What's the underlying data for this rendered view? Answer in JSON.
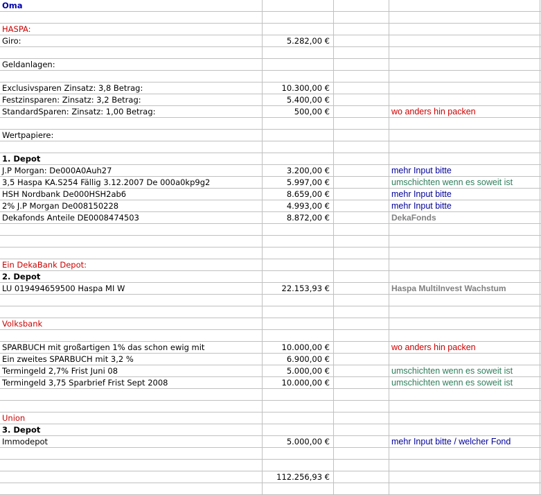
{
  "colors": {
    "title": "#0000aa",
    "section": "#cc0000",
    "note_red": "#cc0000",
    "note_blue": "#000099",
    "note_green": "#2e7d5b",
    "note_gray": "#808080"
  },
  "rows": [
    {
      "a": "Oma",
      "a_style": "title"
    },
    {},
    {
      "a": "HASPA:",
      "a_style": "red"
    },
    {
      "a": "Giro:",
      "b": "5.282,00 €"
    },
    {},
    {
      "a": "Geldanlagen:"
    },
    {},
    {
      "a": "Exclusivsparen Zinsatz: 3,8 Betrag:",
      "b": "10.300,00 €"
    },
    {
      "a": "Festzinsparen: Zinsatz: 3,2 Betrag:",
      "b": "5.400,00 €"
    },
    {
      "a": "StandardSparen: Zinsatz: 1,00 Betrag:",
      "b": "500,00 €",
      "d": "wo anders hin packen",
      "d_style": "d-red"
    },
    {},
    {
      "a": "Wertpapiere:"
    },
    {},
    {
      "a": "1. Depot",
      "a_style": "bold"
    },
    {
      "a": "J.P Morgan: De000A0Auh27",
      "b": "3.200,00 €",
      "d": "mehr Input bitte",
      "d_style": "d-blue"
    },
    {
      "a": "3,5 Haspa KA.S254 Fällig 3.12.2007 De 000a0kp9g2",
      "b": "5.997,00 €",
      "d": "umschichten wenn es soweit ist",
      "d_style": "d-green"
    },
    {
      "a": "HSH Nordbank De000HSH2ab6",
      "b": "8.659,00 €",
      "d": "mehr Input bitte",
      "d_style": "d-blue"
    },
    {
      "a": "2% J.P Morgan De008150228",
      "b": "4.993,00 €",
      "d": "mehr Input bitte",
      "d_style": "d-blue"
    },
    {
      "a": "Dekafonds Anteile DE0008474503",
      "b": "8.872,00 €",
      "d": "DekaFonds",
      "d_style": "d-gray"
    },
    {},
    {},
    {},
    {
      "a": "Ein DekaBank Depot:",
      "a_style": "red"
    },
    {
      "a": "2. Depot",
      "a_style": "bold"
    },
    {
      "a": "LU 019494659500 Haspa MI W",
      "b": "22.153,93 €",
      "d": "Haspa MultiInvest Wachstum",
      "d_style": "d-gray"
    },
    {},
    {},
    {
      "a": "Volksbank",
      "a_style": "red"
    },
    {},
    {
      "a": "SPARBUCH mit großartigen 1% das schon ewig mit",
      "b": "10.000,00 €",
      "d": "wo anders hin packen",
      "d_style": "d-red"
    },
    {
      "a": "Ein zweites SPARBUCH mit 3,2 %",
      "b": "6.900,00 €"
    },
    {
      "a": "Termingeld 2,7% Frist Juni 08",
      "b": "5.000,00 €",
      "d": "umschichten wenn es soweit ist",
      "d_style": "d-green"
    },
    {
      "a": "Termingeld 3,75 Sparbrief Frist Sept 2008",
      "b": "10.000,00 €",
      "d": "umschichten wenn es soweit ist",
      "d_style": "d-green"
    },
    {},
    {},
    {
      "a": "Union",
      "a_style": "red"
    },
    {
      "a": "3. Depot",
      "a_style": "bold"
    },
    {
      "a": "Immodepot",
      "b": "5.000,00 €",
      "d": "mehr Input bitte /  welcher Fond",
      "d_style": "d-blue"
    },
    {},
    {},
    {
      "a": "",
      "b": "112.256,93 €"
    },
    {}
  ]
}
